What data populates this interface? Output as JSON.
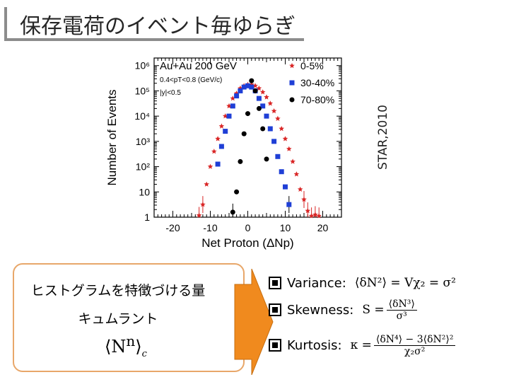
{
  "title": "保存電荷のイベント毎ゆらぎ",
  "citation": "STAR,2010",
  "box": {
    "line1": "ヒストグラムを特徴づける量",
    "line2": "キュムラント",
    "formula_main": "⟨N",
    "formula_sup": "n",
    "formula_close": "⟩",
    "formula_sub": "c"
  },
  "bullets": [
    {
      "label": "Variance:",
      "formula": "⟨δN²⟩ = Vχ₂ = σ²"
    },
    {
      "label": "Skewness:",
      "lhs": "S =",
      "num": "⟨δN³⟩",
      "den": "σ³"
    },
    {
      "label": "Kurtosis:",
      "lhs": "κ =",
      "num": "⟨δN⁴⟩ − 3⟨δN²⟩²",
      "den": "χ₂σ²"
    }
  ],
  "colors": {
    "star": "#d92626",
    "square": "#1f3fd6",
    "circle": "#000000",
    "box_border": "#e8a76a",
    "arrow": "#f08a1e"
  },
  "chart_data": {
    "type": "scatter",
    "xlabel": "Net Proton (ΔNp)",
    "ylabel": "Number of Events",
    "xlim": [
      -25,
      25
    ],
    "ylim_log10": [
      0,
      6.3
    ],
    "yscale": "log",
    "x_ticks": [
      -20,
      -10,
      0,
      10,
      20
    ],
    "y_ticks": [
      "1",
      "10",
      "10²",
      "10³",
      "10⁴",
      "10⁵",
      "10⁶"
    ],
    "annotations": [
      "Au+Au 200 GeV",
      "0.4<pT<0.8 (GeV/c)",
      "|y|<0.5"
    ],
    "legend_position": "top-right",
    "series": [
      {
        "name": "0-5%",
        "marker": "star",
        "x": [
          -13,
          -12,
          -11,
          -10,
          -9,
          -8,
          -7,
          -6,
          -5,
          -4,
          -3,
          -2,
          -1,
          0,
          1,
          2,
          3,
          4,
          5,
          6,
          7,
          8,
          9,
          10,
          11,
          12,
          13,
          14,
          15,
          16,
          17,
          18,
          19
        ],
        "y": [
          0.07,
          0.5,
          1.3,
          2.0,
          2.6,
          3.1,
          3.6,
          4.0,
          4.4,
          4.7,
          4.9,
          5.1,
          5.2,
          5.25,
          5.25,
          5.2,
          5.1,
          4.95,
          4.75,
          4.5,
          4.2,
          3.9,
          3.5,
          3.1,
          2.7,
          2.2,
          1.7,
          1.1,
          0.7,
          0.25,
          0.05,
          0.1,
          0.05
        ]
      },
      {
        "name": "30-40%",
        "marker": "square",
        "x": [
          -8,
          -7,
          -6,
          -5,
          -4,
          -3,
          -2,
          -1,
          0,
          1,
          2,
          3,
          4,
          5,
          6,
          7,
          8,
          9,
          10,
          11
        ],
        "y": [
          2.1,
          2.8,
          3.4,
          4.0,
          4.4,
          4.8,
          5.0,
          5.15,
          5.2,
          5.15,
          5.0,
          4.7,
          4.4,
          4.0,
          3.5,
          3.0,
          2.4,
          1.8,
          1.2,
          0.5
        ]
      },
      {
        "name": "70-80%",
        "marker": "circle",
        "x": [
          -4,
          -3,
          -2,
          -1,
          0,
          1,
          2,
          3,
          4,
          5
        ],
        "y": [
          0.2,
          1.0,
          2.2,
          3.3,
          4.1,
          5.4,
          5.0,
          4.3,
          3.5,
          2.3
        ]
      }
    ]
  }
}
